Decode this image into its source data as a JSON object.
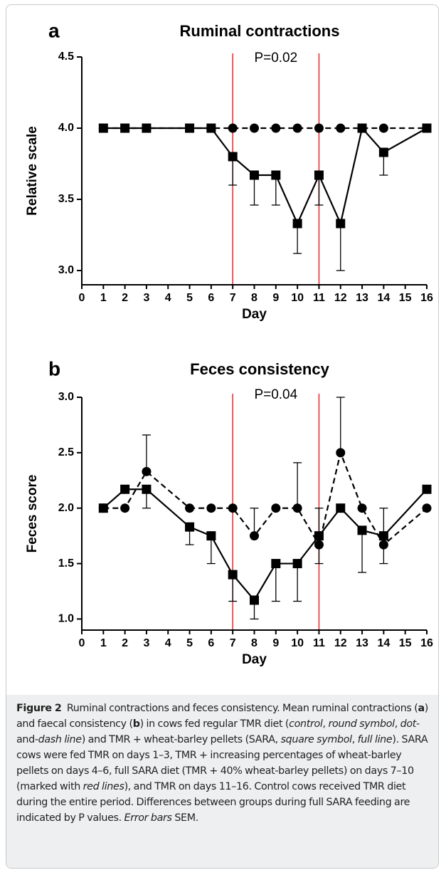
{
  "chart_data": [
    {
      "type": "line",
      "letter": "a",
      "title": "Ruminal contractions",
      "ylabel": "Relative scale",
      "xlabel": "Day",
      "x": [
        1,
        2,
        3,
        5,
        6,
        7,
        8,
        9,
        10,
        11,
        12,
        13,
        14,
        16
      ],
      "xlim": [
        0,
        16
      ],
      "xticks": [
        0,
        1,
        2,
        3,
        4,
        5,
        6,
        7,
        8,
        9,
        10,
        11,
        12,
        13,
        14,
        15,
        16
      ],
      "ylim": [
        2.9,
        4.5
      ],
      "yticks": [
        {
          "value": 3,
          "label": "3.0"
        },
        3.5,
        {
          "value": 4,
          "label": "4.0"
        },
        4.5
      ],
      "vlines": [
        7,
        11
      ],
      "vline_color": "#e8262b",
      "annotation": "P=0.02",
      "series": [
        {
          "color": "#000000",
          "marker": "circle",
          "dash": true,
          "error_direction": "up",
          "values": [
            4,
            4,
            4,
            4,
            4,
            4,
            4,
            4,
            4,
            4,
            4,
            4,
            4,
            4
          ],
          "errors": [
            null,
            null,
            null,
            null,
            null,
            null,
            null,
            null,
            null,
            null,
            null,
            null,
            null,
            null
          ]
        },
        {
          "color": "#000000",
          "marker": "square",
          "dash": false,
          "error_direction": "down",
          "values": [
            4,
            4,
            4,
            4,
            4,
            3.8,
            3.67,
            3.67,
            3.33,
            3.67,
            3.33,
            4,
            3.83,
            4
          ],
          "errors": [
            null,
            null,
            null,
            null,
            null,
            0.2,
            0.21,
            0.21,
            0.21,
            0.21,
            0.33,
            null,
            0.16,
            null
          ]
        }
      ]
    },
    {
      "type": "line",
      "letter": "b",
      "title": "Feces consistency",
      "ylabel": "Feces score",
      "xlabel": "Day",
      "x": [
        1,
        2,
        3,
        5,
        6,
        7,
        8,
        9,
        10,
        11,
        12,
        13,
        14,
        16
      ],
      "xlim": [
        0,
        16
      ],
      "xticks": [
        0,
        1,
        2,
        3,
        4,
        5,
        6,
        7,
        8,
        9,
        10,
        11,
        12,
        13,
        14,
        15,
        16
      ],
      "ylim": [
        0.9,
        3
      ],
      "yticks": [
        {
          "value": 1,
          "label": "1.0"
        },
        1.5,
        {
          "value": 2,
          "label": "2.0"
        },
        2.5,
        {
          "value": 3,
          "label": "3.0"
        }
      ],
      "vlines": [
        7,
        11
      ],
      "vline_color": "#e8262b",
      "annotation": "P=0.04",
      "series": [
        {
          "color": "#000000",
          "marker": "circle",
          "dash": true,
          "error_direction": "up",
          "values": [
            2,
            2,
            2.33,
            2,
            2,
            2,
            1.75,
            2,
            2,
            1.67,
            2.5,
            2,
            1.67,
            2
          ],
          "errors": [
            null,
            null,
            0.33,
            null,
            null,
            null,
            0.25,
            null,
            0.41,
            0.33,
            0.5,
            null,
            0.33,
            null
          ]
        },
        {
          "color": "#000000",
          "marker": "square",
          "dash": false,
          "error_direction": "down",
          "values": [
            2,
            2.17,
            2.17,
            1.83,
            1.75,
            1.4,
            1.17,
            1.5,
            1.5,
            1.75,
            2,
            1.8,
            1.75,
            2.17
          ],
          "errors": [
            null,
            null,
            0.17,
            0.16,
            0.25,
            0.24,
            0.17,
            0.34,
            0.34,
            0.25,
            null,
            0.38,
            0.25,
            null
          ]
        }
      ]
    }
  ],
  "caption": {
    "runs": [
      {
        "text": "Figure 2",
        "style": "bold"
      },
      {
        "text": "  Ruminal contractions and feces consistency. Mean ruminal contractions (",
        "style": "normal"
      },
      {
        "text": "a",
        "style": "bold"
      },
      {
        "text": ") and faecal consistency (",
        "style": "normal"
      },
      {
        "text": "b",
        "style": "bold"
      },
      {
        "text": ") in cows fed regular TMR diet (",
        "style": "normal"
      },
      {
        "text": "control",
        "style": "italic"
      },
      {
        "text": ", ",
        "style": "normal"
      },
      {
        "text": "round symbol",
        "style": "italic"
      },
      {
        "text": ", ",
        "style": "normal"
      },
      {
        "text": "dot",
        "style": "italic"
      },
      {
        "text": "-and-",
        "style": "normal"
      },
      {
        "text": "dash line",
        "style": "italic"
      },
      {
        "text": ") and TMR + wheat-barley pellets (SARA, ",
        "style": "normal"
      },
      {
        "text": "square symbol",
        "style": "italic"
      },
      {
        "text": ", ",
        "style": "normal"
      },
      {
        "text": "full line",
        "style": "italic"
      },
      {
        "text": "). SARA cows were fed TMR on days 1–3, TMR + increasing percentages of wheat-barley pellets on days 4–6, full SARA diet (TMR + 40% wheat-barley pellets) on days 7–10 (marked with ",
        "style": "normal"
      },
      {
        "text": "red lines",
        "style": "italic"
      },
      {
        "text": "), and TMR on days 11–16. Control cows received TMR diet during the entire period. Differences between groups during full SARA feeding are indicated by P values. ",
        "style": "normal"
      },
      {
        "text": "Error bars",
        "style": "italic"
      },
      {
        "text": " SEM.",
        "style": "normal"
      }
    ]
  }
}
